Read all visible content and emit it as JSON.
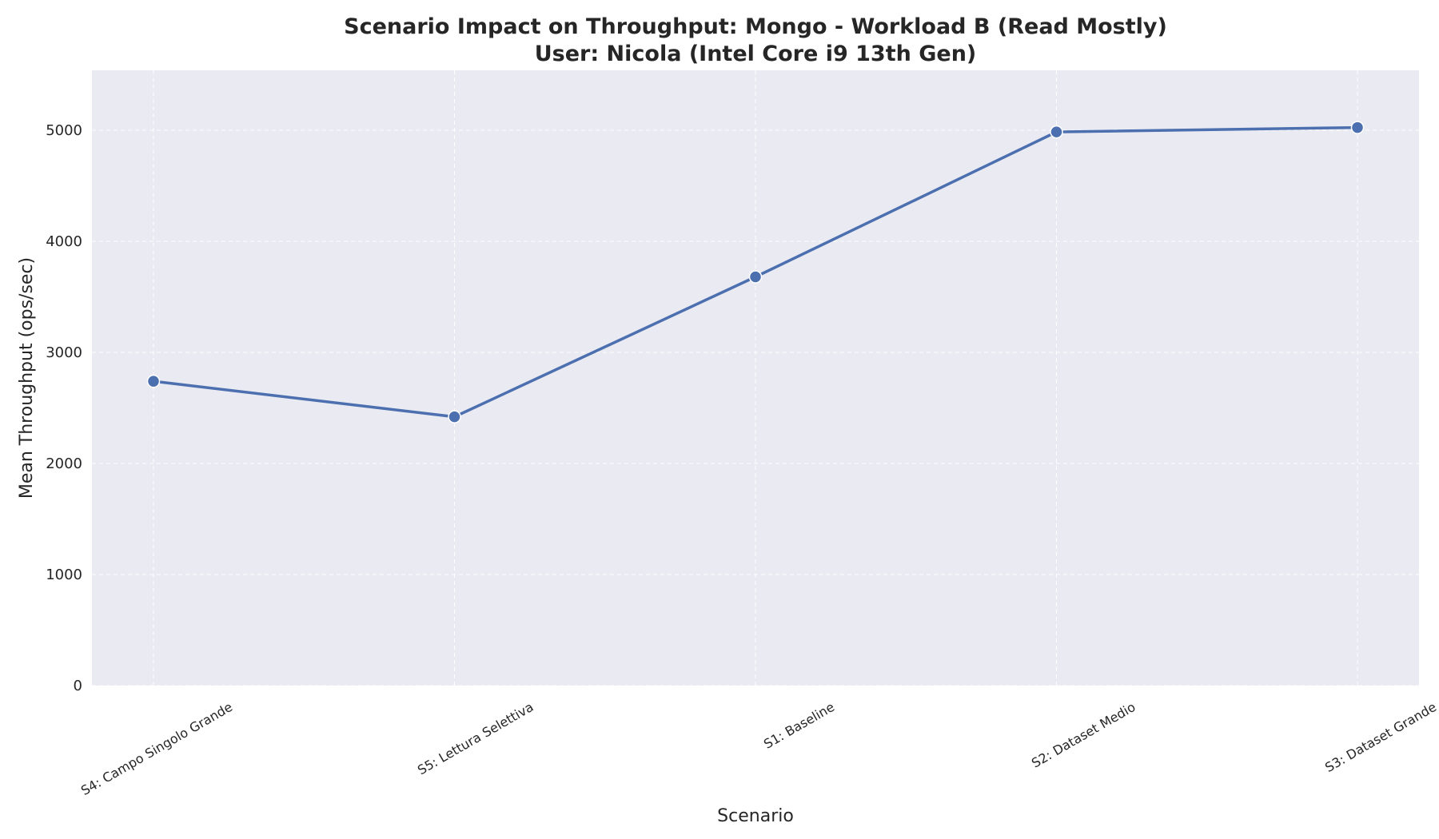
{
  "chart_data": {
    "type": "line",
    "title": "Scenario Impact on Throughput: Mongo - Workload B (Read Mostly)",
    "subtitle": "User: Nicola (Intel Core i9 13th Gen)",
    "xlabel": "Scenario",
    "ylabel": "Mean Throughput (ops/sec)",
    "categories": [
      "S4: Campo Singolo Grande",
      "S5: Lettura Selettiva",
      "S1: Baseline",
      "S2: Dataset Medio",
      "S3: Dataset Grande"
    ],
    "values": [
      2740,
      2420,
      3680,
      4985,
      5025
    ],
    "ylim": [
      0,
      5540
    ],
    "yticks": [
      0,
      1000,
      2000,
      3000,
      4000,
      5000
    ],
    "grid": true,
    "legend": "none",
    "colors": {
      "line": "#4c6faf",
      "background": "#eaeaf2",
      "grid": "#ffffff"
    }
  }
}
